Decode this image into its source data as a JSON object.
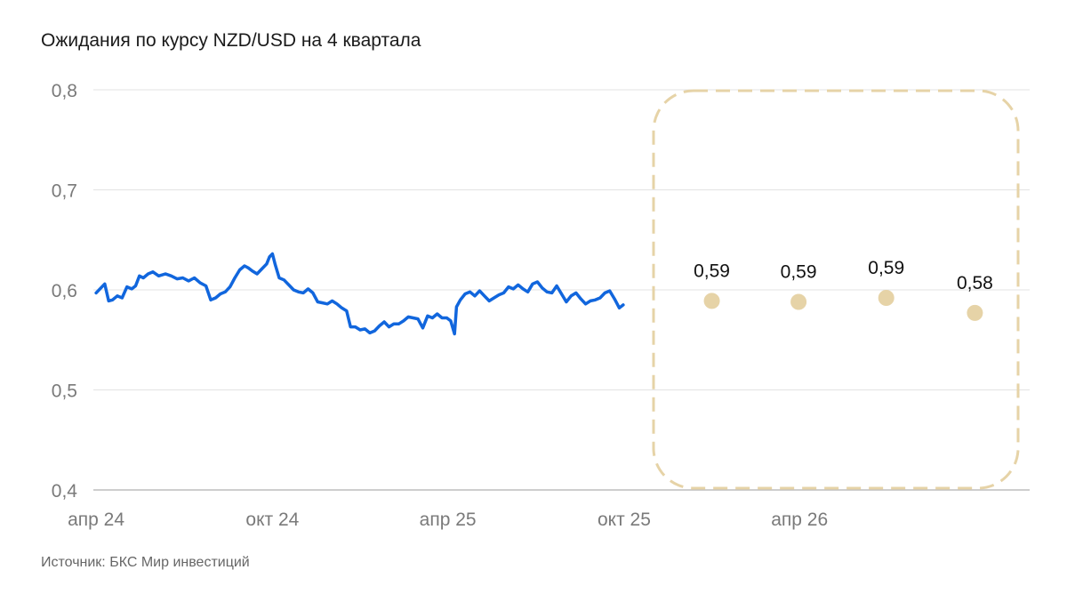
{
  "chart_data": {
    "type": "line",
    "title": "Ожидания по курсу NZD/USD на 4 квартала",
    "xlabel": "",
    "ylabel": "",
    "ylim": [
      0.4,
      0.8
    ],
    "y_ticks": [
      "0,8",
      "0,7",
      "0,6",
      "0,5",
      "0,4"
    ],
    "y_tick_values": [
      0.8,
      0.7,
      0.6,
      0.5,
      0.4
    ],
    "x_ticks": [
      "апр 24",
      "окт 24",
      "апр 25",
      "окт 25",
      "апр 26"
    ],
    "x_tick_dates": [
      "2024-04-01",
      "2024-10-01",
      "2025-04-01",
      "2025-10-01",
      "2026-04-01"
    ],
    "xlim": [
      "2024-04-01",
      "2026-10-31"
    ],
    "grid": true,
    "series": [
      {
        "color": "#1166dd",
        "points": [
          [
            "2024-04-01",
            0.597
          ],
          [
            "2024-04-05",
            0.601
          ],
          [
            "2024-04-10",
            0.606
          ],
          [
            "2024-04-14",
            0.589
          ],
          [
            "2024-04-18",
            0.59
          ],
          [
            "2024-04-23",
            0.594
          ],
          [
            "2024-04-28",
            0.592
          ],
          [
            "2024-05-03",
            0.603
          ],
          [
            "2024-05-08",
            0.601
          ],
          [
            "2024-05-12",
            0.604
          ],
          [
            "2024-05-16",
            0.614
          ],
          [
            "2024-05-20",
            0.612
          ],
          [
            "2024-05-25",
            0.616
          ],
          [
            "2024-05-30",
            0.618
          ],
          [
            "2024-06-05",
            0.614
          ],
          [
            "2024-06-12",
            0.616
          ],
          [
            "2024-06-18",
            0.614
          ],
          [
            "2024-06-24",
            0.611
          ],
          [
            "2024-06-30",
            0.612
          ],
          [
            "2024-07-06",
            0.609
          ],
          [
            "2024-07-12",
            0.612
          ],
          [
            "2024-07-18",
            0.607
          ],
          [
            "2024-07-24",
            0.604
          ],
          [
            "2024-07-29",
            0.59
          ],
          [
            "2024-08-03",
            0.592
          ],
          [
            "2024-08-08",
            0.596
          ],
          [
            "2024-08-13",
            0.598
          ],
          [
            "2024-08-18",
            0.603
          ],
          [
            "2024-08-23",
            0.612
          ],
          [
            "2024-08-28",
            0.62
          ],
          [
            "2024-09-02",
            0.624
          ],
          [
            "2024-09-06",
            0.622
          ],
          [
            "2024-09-10",
            0.619
          ],
          [
            "2024-09-15",
            0.616
          ],
          [
            "2024-09-20",
            0.621
          ],
          [
            "2024-09-25",
            0.626
          ],
          [
            "2024-09-28",
            0.633
          ],
          [
            "2024-10-01",
            0.636
          ],
          [
            "2024-10-04",
            0.625
          ],
          [
            "2024-10-08",
            0.612
          ],
          [
            "2024-10-13",
            0.61
          ],
          [
            "2024-10-18",
            0.605
          ],
          [
            "2024-10-23",
            0.6
          ],
          [
            "2024-10-28",
            0.598
          ],
          [
            "2024-11-02",
            0.597
          ],
          [
            "2024-11-07",
            0.601
          ],
          [
            "2024-11-12",
            0.597
          ],
          [
            "2024-11-17",
            0.588
          ],
          [
            "2024-11-22",
            0.587
          ],
          [
            "2024-11-27",
            0.586
          ],
          [
            "2024-12-02",
            0.589
          ],
          [
            "2024-12-07",
            0.586
          ],
          [
            "2024-12-12",
            0.582
          ],
          [
            "2024-12-17",
            0.579
          ],
          [
            "2024-12-21",
            0.563
          ],
          [
            "2024-12-26",
            0.563
          ],
          [
            "2024-12-31",
            0.56
          ],
          [
            "2025-01-05",
            0.561
          ],
          [
            "2025-01-10",
            0.557
          ],
          [
            "2025-01-15",
            0.559
          ],
          [
            "2025-01-20",
            0.564
          ],
          [
            "2025-01-25",
            0.568
          ],
          [
            "2025-01-30",
            0.563
          ],
          [
            "2025-02-04",
            0.566
          ],
          [
            "2025-02-09",
            0.566
          ],
          [
            "2025-02-14",
            0.569
          ],
          [
            "2025-02-19",
            0.573
          ],
          [
            "2025-02-24",
            0.572
          ],
          [
            "2025-03-01",
            0.571
          ],
          [
            "2025-03-06",
            0.562
          ],
          [
            "2025-03-11",
            0.574
          ],
          [
            "2025-03-16",
            0.572
          ],
          [
            "2025-03-21",
            0.576
          ],
          [
            "2025-03-26",
            0.572
          ],
          [
            "2025-03-31",
            0.572
          ],
          [
            "2025-04-04",
            0.569
          ],
          [
            "2025-04-08",
            0.556
          ],
          [
            "2025-04-10",
            0.583
          ],
          [
            "2025-04-14",
            0.59
          ],
          [
            "2025-04-19",
            0.596
          ],
          [
            "2025-04-24",
            0.598
          ],
          [
            "2025-04-29",
            0.594
          ],
          [
            "2025-05-04",
            0.599
          ],
          [
            "2025-05-09",
            0.594
          ],
          [
            "2025-05-14",
            0.589
          ],
          [
            "2025-05-19",
            0.592
          ],
          [
            "2025-05-24",
            0.595
          ],
          [
            "2025-05-29",
            0.597
          ],
          [
            "2025-06-03",
            0.603
          ],
          [
            "2025-06-08",
            0.601
          ],
          [
            "2025-06-13",
            0.605
          ],
          [
            "2025-06-18",
            0.601
          ],
          [
            "2025-06-23",
            0.598
          ],
          [
            "2025-06-28",
            0.606
          ],
          [
            "2025-07-03",
            0.608
          ],
          [
            "2025-07-08",
            0.602
          ],
          [
            "2025-07-13",
            0.598
          ],
          [
            "2025-07-18",
            0.597
          ],
          [
            "2025-07-23",
            0.604
          ],
          [
            "2025-07-28",
            0.596
          ],
          [
            "2025-08-02",
            0.588
          ],
          [
            "2025-08-07",
            0.594
          ],
          [
            "2025-08-12",
            0.597
          ],
          [
            "2025-08-17",
            0.591
          ],
          [
            "2025-08-22",
            0.586
          ],
          [
            "2025-08-27",
            0.589
          ],
          [
            "2025-09-01",
            0.59
          ],
          [
            "2025-09-06",
            0.592
          ],
          [
            "2025-09-11",
            0.597
          ],
          [
            "2025-09-16",
            0.599
          ],
          [
            "2025-09-21",
            0.591
          ],
          [
            "2025-09-26",
            0.582
          ],
          [
            "2025-09-30",
            0.585
          ]
        ]
      },
      {
        "color": "#e6d3a7",
        "points": [
          [
            "2025-12-31",
            0.589
          ],
          [
            "2026-03-31",
            0.588
          ],
          [
            "2026-06-30",
            0.592
          ],
          [
            "2026-09-30",
            0.577
          ]
        ],
        "data_labels": [
          "0,59",
          "0,59",
          "0,59",
          "0,58"
        ]
      }
    ],
    "annotations": [
      "dashed rounded frame around the forecast points"
    ]
  },
  "source": "Источник: БКС Мир инвестиций"
}
